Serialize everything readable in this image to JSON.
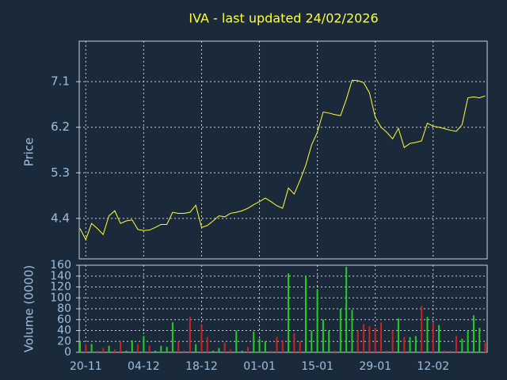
{
  "chart_data": {
    "type": "line",
    "title": "IVA - last updated 24/02/2026",
    "ylabel": "Price",
    "y2label": "Volume (0000)",
    "categories": [
      null,
      "20-11",
      null,
      null,
      null,
      null,
      null,
      null,
      null,
      null,
      null,
      "04-12",
      null,
      null,
      null,
      null,
      null,
      null,
      null,
      null,
      null,
      "18-12",
      null,
      null,
      null,
      null,
      null,
      null,
      null,
      null,
      null,
      "01-01",
      null,
      null,
      null,
      null,
      null,
      null,
      null,
      null,
      null,
      "15-01",
      null,
      null,
      null,
      null,
      null,
      null,
      null,
      null,
      null,
      "29-01",
      null,
      null,
      null,
      null,
      null,
      null,
      null,
      null,
      null,
      "12-02",
      null,
      null,
      null,
      null,
      null,
      null,
      null,
      null,
      null
    ],
    "ylim": [
      3.6,
      7.9
    ],
    "yticks": [
      4.4,
      5.3,
      6.2,
      7.1
    ],
    "y2lim": [
      0,
      160
    ],
    "y2ticks": [
      0,
      20,
      40,
      60,
      80,
      100,
      120,
      140,
      160
    ],
    "grid": true,
    "series": [
      {
        "name": "Price",
        "type": "line",
        "color": "#ffff33",
        "values": [
          4.2,
          3.98,
          4.3,
          4.2,
          4.08,
          4.45,
          4.55,
          4.3,
          4.35,
          4.37,
          4.18,
          4.16,
          4.17,
          4.22,
          4.28,
          4.28,
          4.52,
          4.5,
          4.5,
          4.52,
          4.66,
          4.22,
          4.26,
          4.35,
          4.45,
          4.43,
          4.5,
          4.52,
          4.55,
          4.6,
          4.67,
          4.73,
          4.8,
          4.73,
          4.65,
          4.6,
          5.0,
          4.88,
          5.15,
          5.45,
          5.85,
          6.1,
          6.5,
          6.48,
          6.45,
          6.43,
          6.75,
          7.13,
          7.12,
          7.08,
          6.88,
          6.4,
          6.2,
          6.1,
          5.97,
          6.18,
          5.8,
          5.88,
          5.9,
          5.93,
          6.28,
          6.22,
          6.2,
          6.17,
          6.14,
          6.12,
          6.25,
          6.78,
          6.8,
          6.78,
          6.82
        ]
      },
      {
        "name": "Volume",
        "type": "bar",
        "axis": "y2",
        "values": [
          20,
          15,
          15,
          3,
          8,
          12,
          5,
          20,
          3,
          22,
          15,
          30,
          12,
          3,
          12,
          10,
          55,
          20,
          3,
          65,
          15,
          50,
          28,
          3,
          8,
          18,
          5,
          40,
          3,
          10,
          38,
          25,
          20,
          3,
          28,
          22,
          145,
          35,
          20,
          140,
          40,
          115,
          60,
          40,
          3,
          80,
          157,
          78,
          40,
          52,
          48,
          45,
          55,
          3,
          40,
          62,
          28,
          28,
          30,
          85,
          65,
          55,
          50,
          3,
          3,
          30,
          25,
          40,
          68,
          45,
          18
        ],
        "colors": [
          "#22cc22",
          "#cc2222",
          "#22cc22",
          "#cc2222",
          "#cc2222",
          "#22cc22",
          "#cc2222",
          "#cc2222",
          "#22cc22",
          "#22cc22",
          "#cc2222",
          "#22cc22",
          "#cc2222",
          "#22cc22",
          "#22cc22",
          "#22cc22",
          "#22cc22",
          "#cc2222",
          "#cc2222",
          "#cc2222",
          "#22cc22",
          "#cc2222",
          "#cc2222",
          "#22cc22",
          "#22cc22",
          "#cc2222",
          "#cc2222",
          "#22cc22",
          "#22cc22",
          "#cc2222",
          "#22cc22",
          "#22cc22",
          "#22cc22",
          "#cc2222",
          "#cc2222",
          "#cc2222",
          "#22cc22",
          "#cc2222",
          "#cc2222",
          "#22cc22",
          "#22cc22",
          "#22cc22",
          "#22cc22",
          "#22cc22",
          "#cc2222",
          "#22cc22",
          "#22cc22",
          "#22cc22",
          "#cc2222",
          "#cc2222",
          "#cc2222",
          "#cc2222",
          "#cc2222",
          "#cc2222",
          "#cc2222",
          "#22cc22",
          "#cc2222",
          "#22cc22",
          "#22cc22",
          "#cc2222",
          "#22cc22",
          "#cc2222",
          "#22cc22",
          "#cc2222",
          "#cc2222",
          "#cc2222",
          "#22cc22",
          "#22cc22",
          "#22cc22",
          "#22cc22",
          "#cc2222"
        ]
      }
    ]
  }
}
